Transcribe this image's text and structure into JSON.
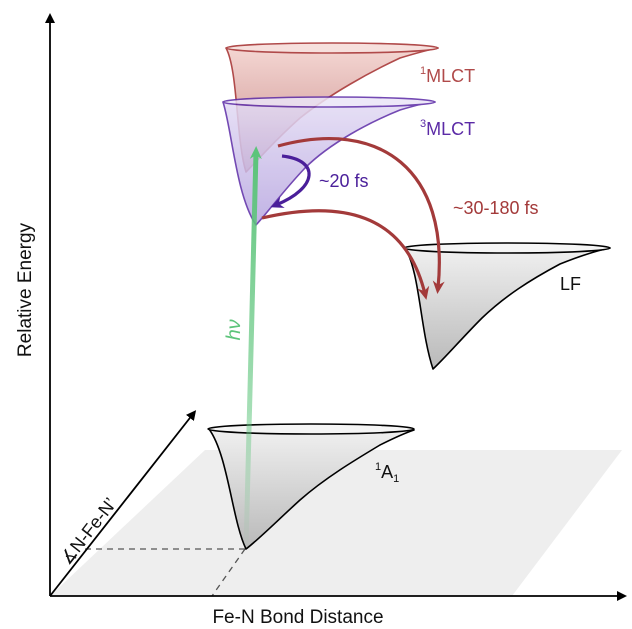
{
  "axes": {
    "y_label": "Relative Energy",
    "x_label": "Fe-N Bond Distance",
    "depth_label": "∡N-Fe-N’"
  },
  "states": {
    "mlct1": {
      "sup": "1",
      "name": "MLCT"
    },
    "mlct3": {
      "sup": "3",
      "name": "MLCT"
    },
    "lf": {
      "name": "LF"
    },
    "ground": {
      "name": "A",
      "sup": "1",
      "sub": "1"
    }
  },
  "transitions": {
    "excitation": "hν",
    "isc": "~20 fs",
    "relax": "~30-180 fs"
  },
  "colors": {
    "mlct1": "#b04a4a",
    "mlct3": "#5b2aa6",
    "green": "#5cc47a",
    "relax": "#a33a3a",
    "isc": "#5a2aa0",
    "surface_gray": "#c8c8c8"
  }
}
